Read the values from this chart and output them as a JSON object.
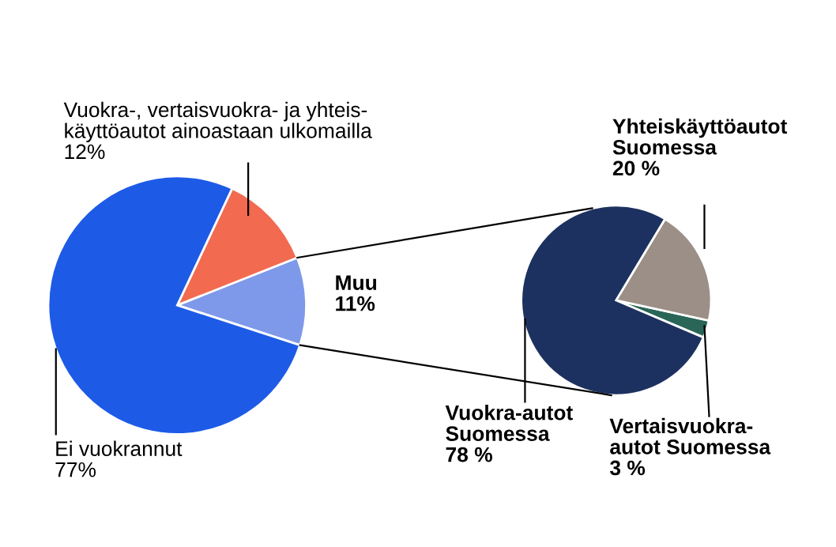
{
  "chart_data": [
    {
      "type": "pie",
      "categories": [
        "Muu",
        "Vuokra-, vertaisvuokra- ja yhteis-\nkäyttöautot ainoastaan ulkomailla",
        "Ei vuokrannut"
      ],
      "values": [
        11,
        12,
        77
      ],
      "colors": [
        "#7f99ea",
        "#f26a50",
        "#1d5be6"
      ],
      "value_labels": [
        "11%",
        "12%",
        "77%"
      ]
    },
    {
      "type": "pie",
      "categories": [
        "Vertaisvuokra-\nautot Suomessa",
        "Yhteiskäyttöautot\nSuomessa",
        "Vuokra-autot\nSuomessa"
      ],
      "values": [
        3,
        20,
        78
      ],
      "colors": [
        "#2a6658",
        "#9b8f87",
        "#1c315f"
      ],
      "value_labels": [
        "3 %",
        "20 %",
        "78 %"
      ]
    }
  ]
}
